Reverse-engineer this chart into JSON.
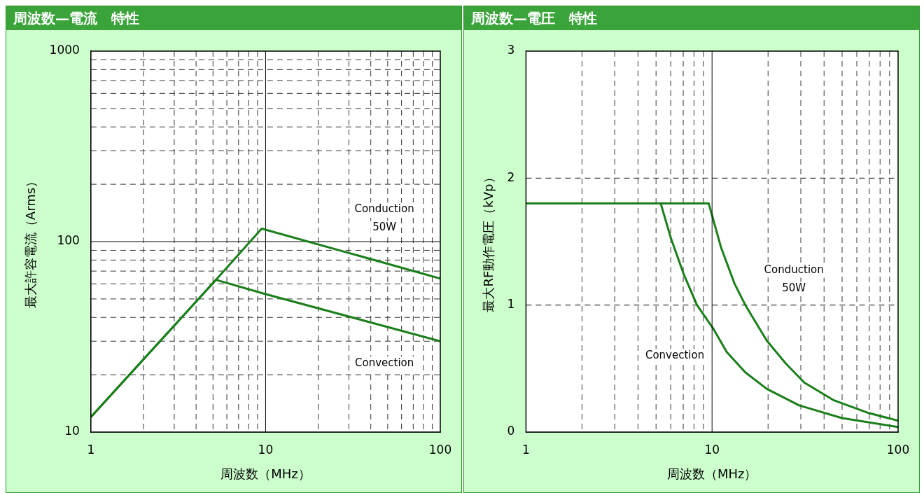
{
  "chart_data": [
    {
      "type": "line",
      "title": "周波数—電流　特性",
      "xlabel": "周波数（MHz）",
      "ylabel": "最大許容電流（Arms）",
      "log": "xy",
      "grid": true,
      "legend": false,
      "marker": "none",
      "line_style": "solid",
      "xlim": [
        1,
        100
      ],
      "ylim": [
        10,
        1000
      ],
      "xticks": [
        1,
        {
          "value": 2,
          "label": null
        },
        {
          "value": 3,
          "label": null
        },
        {
          "value": 4,
          "label": null
        },
        {
          "value": 5,
          "label": null
        },
        {
          "value": 6,
          "label": null
        },
        {
          "value": 7,
          "label": null
        },
        {
          "value": 8,
          "label": null
        },
        {
          "value": 9,
          "label": null
        },
        10,
        {
          "value": 20,
          "label": null
        },
        {
          "value": 30,
          "label": null
        },
        {
          "value": 40,
          "label": null
        },
        {
          "value": 50,
          "label": null
        },
        {
          "value": 60,
          "label": null
        },
        {
          "value": 70,
          "label": null
        },
        {
          "value": 80,
          "label": null
        },
        {
          "value": 90,
          "label": null
        },
        100
      ],
      "yticks": [
        10,
        {
          "value": 20,
          "label": null
        },
        {
          "value": 30,
          "label": null
        },
        {
          "value": 40,
          "label": null
        },
        {
          "value": 50,
          "label": null
        },
        {
          "value": 60,
          "label": null
        },
        {
          "value": 70,
          "label": null
        },
        {
          "value": 80,
          "label": null
        },
        {
          "value": 90,
          "label": null
        },
        100,
        {
          "value": 200,
          "label": null
        },
        {
          "value": 300,
          "label": null
        },
        {
          "value": 400,
          "label": null
        },
        {
          "value": 500,
          "label": null
        },
        {
          "value": 600,
          "label": null
        },
        {
          "value": 700,
          "label": null
        },
        {
          "value": 800,
          "label": null
        },
        {
          "value": 900,
          "label": null
        },
        1000
      ],
      "series": [
        {
          "name": "Conduction 50W",
          "color": "#1a7f1a",
          "x": [
            1,
            5.2,
            9.5,
            100
          ],
          "values": [
            12,
            63,
            117,
            64
          ]
        },
        {
          "name": "Convection",
          "color": "#1a7f1a",
          "x": [
            1,
            5.2,
            10,
            100
          ],
          "values": [
            12,
            63,
            53,
            30
          ]
        }
      ]
    },
    {
      "type": "line",
      "title": "周波数—電圧　特性",
      "xlabel": "周波数（MHz）",
      "ylabel": "最大RF動作電圧（kVp）",
      "log": "x",
      "grid": true,
      "legend": false,
      "marker": "none",
      "line_style": "solid",
      "xlim": [
        1,
        100
      ],
      "ylim": [
        0,
        3
      ],
      "xticks": [
        1,
        {
          "value": 2,
          "label": null
        },
        {
          "value": 3,
          "label": null
        },
        {
          "value": 4,
          "label": null
        },
        {
          "value": 5,
          "label": null
        },
        {
          "value": 6,
          "label": null
        },
        {
          "value": 7,
          "label": null
        },
        {
          "value": 8,
          "label": null
        },
        {
          "value": 9,
          "label": null
        },
        10,
        {
          "value": 20,
          "label": null
        },
        {
          "value": 30,
          "label": null
        },
        {
          "value": 40,
          "label": null
        },
        {
          "value": 50,
          "label": null
        },
        {
          "value": 60,
          "label": null
        },
        {
          "value": 70,
          "label": null
        },
        {
          "value": 80,
          "label": null
        },
        {
          "value": 90,
          "label": null
        },
        100
      ],
      "yticks": [
        0,
        1,
        2,
        3
      ],
      "series": [
        {
          "name": "Conduction 50W",
          "color": "#1a7f1a",
          "x": [
            1,
            9.6,
            11.2,
            13.2,
            15.1,
            19.7,
            24.9,
            31.3,
            45.2,
            69.5,
            100
          ],
          "values": [
            1.8,
            1.8,
            1.45,
            1.17,
            1.0,
            0.72,
            0.54,
            0.39,
            0.25,
            0.15,
            0.09
          ]
        },
        {
          "name": "Convection",
          "color": "#1a7f1a",
          "x": [
            1,
            5.3,
            6.0,
            7.06,
            8.3,
            10.1,
            12,
            15.1,
            19.7,
            29.4,
            49.9,
            100
          ],
          "values": [
            1.8,
            1.8,
            1.53,
            1.24,
            1.0,
            0.82,
            0.63,
            0.47,
            0.34,
            0.21,
            0.11,
            0.04
          ]
        }
      ],
      "ref_lines": [
        {
          "axis": "x",
          "value": 10,
          "color": "#000000",
          "line_style": "solid"
        }
      ]
    }
  ]
}
